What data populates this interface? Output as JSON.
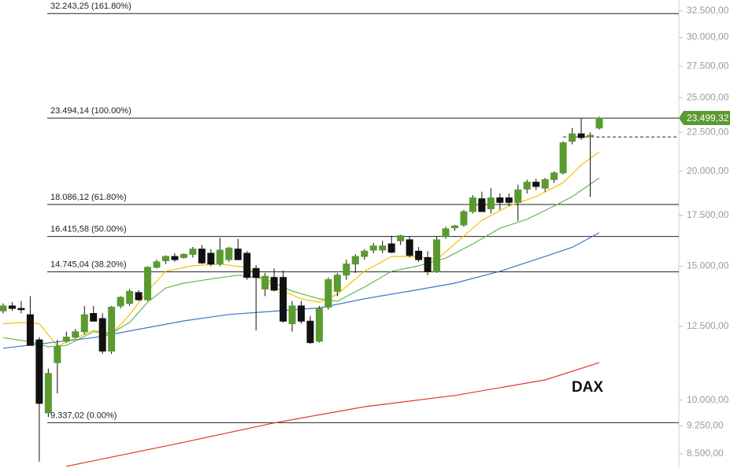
{
  "chart_data": {
    "type": "candlestick",
    "title": "DAX",
    "log_scale": true,
    "ylim": [
      8140,
      33600
    ],
    "yticks": [
      {
        "value": 32500,
        "label": "32.500,00"
      },
      {
        "value": 30000,
        "label": "30.000,00"
      },
      {
        "value": 27500,
        "label": "27.500,00"
      },
      {
        "value": 25000,
        "label": "25.000,00"
      },
      {
        "value": 22500,
        "label": "22.500,00"
      },
      {
        "value": 20000,
        "label": "20.000,00"
      },
      {
        "value": 17500,
        "label": "17.500,00"
      },
      {
        "value": 15000,
        "label": "15.000,00"
      },
      {
        "value": 12500,
        "label": "12.500,00"
      },
      {
        "value": 10000,
        "label": "10.000,00"
      },
      {
        "value": 9250,
        "label": "9.250,00"
      },
      {
        "value": 8500,
        "label": "8.500,00"
      }
    ],
    "up_color": "#5b9a2f",
    "down_color": "#111111",
    "open": [
      13100,
      13300,
      13200,
      12950,
      12000,
      9620,
      11200,
      11950,
      12100,
      12300,
      13000,
      12800,
      11600,
      13300,
      13400,
      13850,
      13550,
      14950,
      15250,
      15450,
      15400,
      15550,
      15800,
      15600,
      15100,
      15300,
      15800,
      15600,
      14900,
      14000,
      14500,
      14500,
      12600,
      13300,
      12700,
      11950,
      13250,
      13900,
      14600,
      15100,
      15450,
      15750,
      15750,
      16050,
      16200,
      16250,
      15700,
      15400,
      14750,
      16400,
      16850,
      17000,
      17700,
      18400,
      17850,
      18450,
      18450,
      18200,
      18950,
      19350,
      19000,
      19500,
      19900,
      21900,
      22400,
      22200,
      22800
    ],
    "high": [
      13400,
      13450,
      13500,
      13700,
      12100,
      11000,
      12000,
      12300,
      12400,
      13300,
      13300,
      13000,
      13300,
      13700,
      14000,
      13950,
      15000,
      15300,
      15500,
      15600,
      15600,
      15900,
      16000,
      15800,
      16350,
      15900,
      16300,
      15700,
      15050,
      14700,
      14900,
      14800,
      13500,
      13500,
      12900,
      13300,
      14500,
      14700,
      15300,
      15550,
      15800,
      16100,
      16200,
      16450,
      16500,
      16400,
      15900,
      15700,
      16400,
      16900,
      17000,
      17800,
      18600,
      18800,
      19000,
      18700,
      18700,
      19200,
      19500,
      19550,
      19600,
      20000,
      21900,
      22800,
      23500,
      22500,
      23600
    ],
    "low": [
      13000,
      13100,
      13000,
      11800,
      8300,
      9500,
      10200,
      11900,
      12050,
      12200,
      12700,
      11500,
      11500,
      13200,
      13300,
      13500,
      13500,
      14900,
      15100,
      15200,
      15350,
      15400,
      15100,
      15000,
      15000,
      15200,
      15300,
      14400,
      12350,
      13700,
      13900,
      12650,
      12300,
      12600,
      11850,
      11900,
      13150,
      13700,
      14400,
      14700,
      15300,
      15600,
      15600,
      15600,
      16000,
      15400,
      15200,
      14600,
      14700,
      16300,
      16700,
      16900,
      17600,
      17800,
      17600,
      17800,
      18000,
      17200,
      18700,
      18900,
      18800,
      19300,
      19800,
      21700,
      22000,
      18500,
      22700
    ],
    "close": [
      13300,
      13200,
      13150,
      11800,
      9900,
      10840,
      11750,
      12100,
      12300,
      12950,
      12700,
      11600,
      13250,
      13650,
      13900,
      13550,
      14950,
      15200,
      15450,
      15300,
      15550,
      15800,
      15150,
      15100,
      15750,
      15850,
      15300,
      14500,
      14500,
      14550,
      13950,
      12700,
      13300,
      12700,
      11900,
      13200,
      14400,
      14600,
      15100,
      15450,
      15700,
      15950,
      15950,
      15650,
      16450,
      15500,
      15300,
      14750,
      16250,
      16800,
      16950,
      17700,
      18450,
      17700,
      18450,
      18200,
      18200,
      18900,
      19350,
      19100,
      19500,
      19900,
      21800,
      22400,
      22150,
      22300,
      23499.32
    ],
    "last_price_label": "23.499,32",
    "last_price_color": "#5b9a2f",
    "reference_level": 22190,
    "moving_averages": [
      {
        "color": "#f2c200",
        "x": [
          0,
          2,
          4,
          6,
          8,
          10,
          12,
          14,
          16,
          18,
          21,
          24,
          27,
          30,
          33,
          35,
          37,
          40,
          43,
          46,
          48,
          50,
          53,
          56,
          59,
          62,
          64,
          66
        ],
        "values": [
          12600,
          12650,
          12600,
          11780,
          12060,
          12350,
          12200,
          12950,
          13910,
          14770,
          15020,
          15100,
          14940,
          14080,
          13590,
          13450,
          13780,
          14770,
          15450,
          15450,
          15300,
          16050,
          17240,
          18000,
          18520,
          19320,
          20380,
          21210
        ]
      },
      {
        "color": "#5fb84e",
        "x": [
          0,
          3,
          5,
          7,
          10,
          12,
          14,
          16,
          18,
          20,
          23,
          26,
          29,
          32,
          35,
          37,
          40,
          43,
          46,
          49,
          52,
          55,
          58,
          61,
          63,
          66
        ],
        "values": [
          12080,
          11930,
          11750,
          11800,
          12300,
          12250,
          12650,
          13450,
          14040,
          14250,
          14430,
          14600,
          14430,
          13910,
          13590,
          13490,
          14080,
          14770,
          15020,
          15370,
          16050,
          16830,
          17290,
          18000,
          18520,
          19600
        ]
      },
      {
        "color": "#3a76cc",
        "x": [
          0,
          10,
          20,
          25,
          30,
          35,
          40,
          45,
          50,
          55,
          60,
          63,
          66
        ],
        "values": [
          11700,
          12080,
          12710,
          12960,
          13090,
          13220,
          13590,
          13910,
          14250,
          14770,
          15450,
          15880,
          16600
        ]
      },
      {
        "color": "#e0392a",
        "x": [
          7,
          20,
          30,
          40,
          50,
          60,
          66
        ],
        "values": [
          8180,
          8800,
          9330,
          9800,
          10140,
          10630,
          11200
        ]
      }
    ],
    "levels": [
      {
        "value": 32243.25,
        "label": "32.243,25 (161.80%)"
      },
      {
        "value": 23494.14,
        "label": "23.494,14 (100.00%)"
      },
      {
        "value": 18086.12,
        "label": "18.086,12 (61.80%)"
      },
      {
        "value": 16415.58,
        "label": "16.415,58 (50.00%)"
      },
      {
        "value": 14745.04,
        "label": "14.745,04 (38.20%)"
      },
      {
        "value": 9337.02,
        "label": "9.337,02 (0.00%)"
      }
    ]
  }
}
